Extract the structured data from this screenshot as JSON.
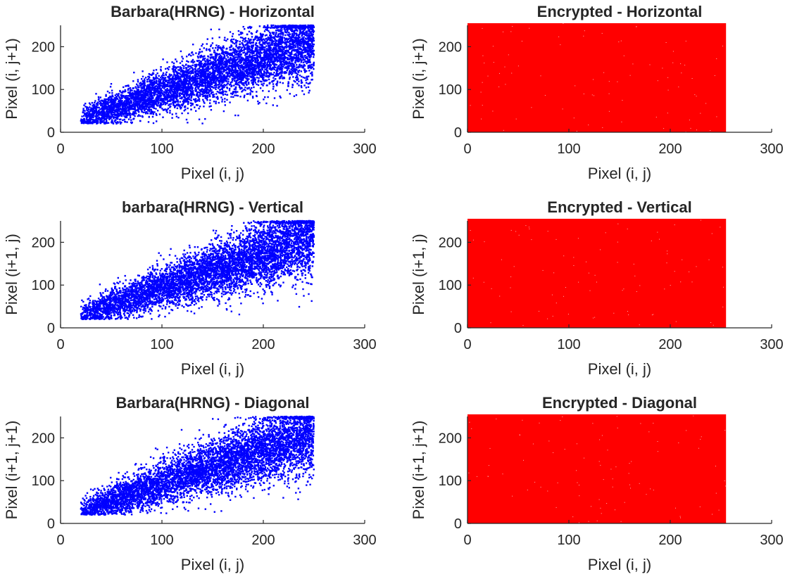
{
  "chart_data": [
    {
      "type": "scatter",
      "title": "Barbara(HRNG) - Horizontal",
      "xlabel": "Pixel (i, j)",
      "ylabel": "Pixel (i, j+1)",
      "xlim": [
        0,
        300
      ],
      "ylim": [
        0,
        250
      ],
      "xticks": [
        "0",
        "100",
        "200",
        "300"
      ],
      "yticks": [
        "0",
        "100",
        "200"
      ],
      "color": "#0000ff",
      "distribution": "correlated",
      "x_range": [
        20,
        250
      ],
      "y_range": [
        20,
        250
      ],
      "correlation_slope": 0.8,
      "point_count_hint": 6000
    },
    {
      "type": "scatter",
      "title": "Encrypted - Horizontal",
      "xlabel": "Pixel (i, j)",
      "ylabel": "Pixel (i, j+1)",
      "xlim": [
        0,
        300
      ],
      "ylim": [
        0,
        250
      ],
      "xticks": [
        "0",
        "100",
        "200",
        "300"
      ],
      "yticks": [
        "0",
        "100",
        "200"
      ],
      "color": "#ff0000",
      "distribution": "uniform",
      "x_range": [
        0,
        255
      ],
      "y_range": [
        0,
        255
      ]
    },
    {
      "type": "scatter",
      "title": "barbara(HRNG) - Vertical",
      "xlabel": "Pixel (i, j)",
      "ylabel": "Pixel (i+1, j)",
      "xlim": [
        0,
        300
      ],
      "ylim": [
        0,
        250
      ],
      "xticks": [
        "0",
        "100",
        "200",
        "300"
      ],
      "yticks": [
        "0",
        "100",
        "200"
      ],
      "color": "#0000ff",
      "distribution": "correlated",
      "x_range": [
        20,
        250
      ],
      "y_range": [
        20,
        250
      ],
      "correlation_slope": 0.8,
      "point_count_hint": 6000
    },
    {
      "type": "scatter",
      "title": "Encrypted - Vertical",
      "xlabel": "Pixel (i, j)",
      "ylabel": "Pixel (i+1, j)",
      "xlim": [
        0,
        300
      ],
      "ylim": [
        0,
        250
      ],
      "xticks": [
        "0",
        "100",
        "200",
        "300"
      ],
      "yticks": [
        "0",
        "100",
        "200"
      ],
      "color": "#ff0000",
      "distribution": "uniform",
      "x_range": [
        0,
        255
      ],
      "y_range": [
        0,
        255
      ]
    },
    {
      "type": "scatter",
      "title": "Barbara(HRNG) - Diagonal",
      "xlabel": "Pixel (i, j)",
      "ylabel": "Pixel (i+1, j+1)",
      "xlim": [
        0,
        300
      ],
      "ylim": [
        0,
        250
      ],
      "xticks": [
        "0",
        "100",
        "200",
        "300"
      ],
      "yticks": [
        "0",
        "100",
        "200"
      ],
      "color": "#0000ff",
      "distribution": "correlated",
      "x_range": [
        20,
        250
      ],
      "y_range": [
        20,
        250
      ],
      "correlation_slope": 0.8,
      "point_count_hint": 6000
    },
    {
      "type": "scatter",
      "title": "Encrypted - Diagonal",
      "xlabel": "Pixel (i, j)",
      "ylabel": "Pixel (i+1, j+1)",
      "xlim": [
        0,
        300
      ],
      "ylim": [
        0,
        250
      ],
      "xticks": [
        "0",
        "100",
        "200",
        "300"
      ],
      "yticks": [
        "0",
        "100",
        "200"
      ],
      "color": "#ff0000",
      "distribution": "uniform",
      "x_range": [
        0,
        255
      ],
      "y_range": [
        0,
        255
      ]
    }
  ]
}
